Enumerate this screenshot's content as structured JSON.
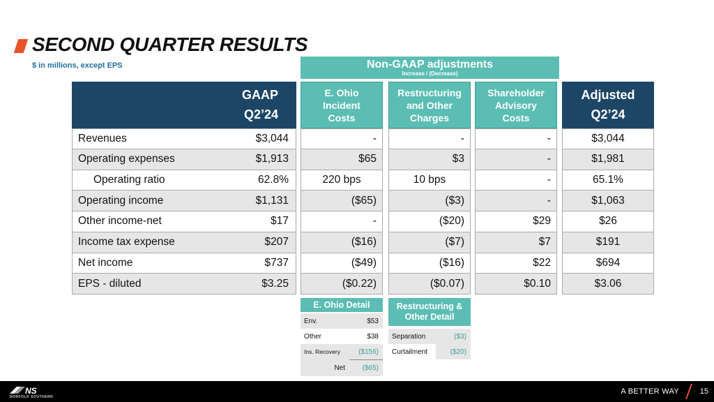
{
  "header": {
    "title": "SECOND QUARTER RESULTS",
    "subtitle": "$ in millions, except EPS"
  },
  "banner": {
    "title": "Non-GAAP adjustments",
    "subtitle": "Increase / (Decrease)"
  },
  "gaap": {
    "line1": "GAAP",
    "line2": "Q2’24"
  },
  "adjusted": {
    "line1": "Adjusted",
    "line2": "Q2’24"
  },
  "columns": {
    "ohio": [
      "E. Ohio",
      "Incident",
      "Costs"
    ],
    "restructuring": [
      "Restructuring",
      "and Other",
      "Charges"
    ],
    "shareholder": [
      "Shareholder",
      "Advisory",
      "Costs"
    ]
  },
  "rows": [
    {
      "label": "Revenues",
      "gaap": "$3,044",
      "ohio": "-",
      "restr": "-",
      "share": "-",
      "adj": "$3,044"
    },
    {
      "label": "Operating expenses",
      "gaap": "$1,913",
      "ohio": "$65",
      "restr": "$3",
      "share": "-",
      "adj": "$1,981"
    },
    {
      "label": "Operating ratio",
      "gaap": "62.8%",
      "ohio": "220 bps",
      "restr": "10 bps",
      "share": "-",
      "adj": "65.1%"
    },
    {
      "label": "Operating income",
      "gaap": "$1,131",
      "ohio": "($65)",
      "restr": "($3)",
      "share": "-",
      "adj": "$1,063"
    },
    {
      "label": "Other income-net",
      "gaap": "$17",
      "ohio": "-",
      "restr": "($20)",
      "share": "$29",
      "adj": "$26"
    },
    {
      "label": "Income tax expense",
      "gaap": "$207",
      "ohio": "($16)",
      "restr": "($7)",
      "share": "$7",
      "adj": "$191"
    },
    {
      "label": "Net income",
      "gaap": "$737",
      "ohio": "($49)",
      "restr": "($16)",
      "share": "$22",
      "adj": "$694"
    },
    {
      "label": "EPS - diluted",
      "gaap": "$3.25",
      "ohio": "($0.22)",
      "restr": "($0.07)",
      "share": "$0.10",
      "adj": "$3.06"
    }
  ],
  "ohio_detail": {
    "title": "E. Ohio Detail",
    "rows": [
      {
        "k": "Env.",
        "v": "$53"
      },
      {
        "k": "Other",
        "v": "$38"
      },
      {
        "k": "Ins. Recovery",
        "v": "($156)"
      },
      {
        "k": "Net",
        "v": "($65)"
      }
    ]
  },
  "restr_detail": {
    "title": [
      "Restructuring &",
      "Other Detail"
    ],
    "rows": [
      {
        "k": "Separation",
        "v": "($3)"
      },
      {
        "k": "Curtailment",
        "v": "($20)"
      }
    ]
  },
  "footer": {
    "logo_text": "NORFOLK SOUTHERN",
    "tagline": "A BETTER WAY",
    "page": "15"
  },
  "colors": {
    "navy": "#1d4666",
    "teal": "#5bbdb3",
    "accent": "#e8542a"
  }
}
